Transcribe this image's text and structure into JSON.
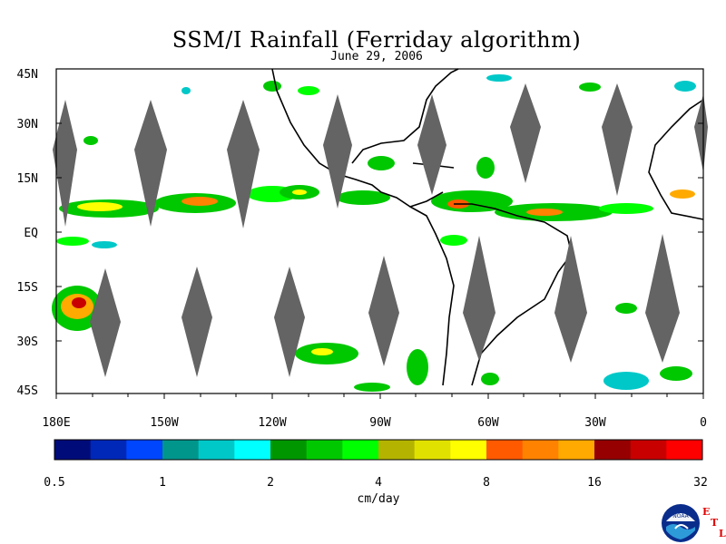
{
  "title": "SSM/I Rainfall (Ferriday algorithm)",
  "date": "June 29, 2006",
  "map": {
    "lat_labels": [
      "45N",
      "30N",
      "15N",
      "EQ",
      "15S",
      "30S",
      "45S"
    ],
    "lon_labels": [
      "180E",
      "150W",
      "120W",
      "90W",
      "60W",
      "30W",
      "0"
    ]
  },
  "colorbar": {
    "colors": [
      "#000b7a",
      "#0028b8",
      "#0046ff",
      "#00968c",
      "#00c8c8",
      "#00ffff",
      "#009600",
      "#00c800",
      "#00ff00",
      "#b4b400",
      "#e1e100",
      "#ffff00",
      "#ff5a00",
      "#ff8200",
      "#ffaa00",
      "#960000",
      "#c80000",
      "#ff0000"
    ],
    "tick_labels": [
      "0.5",
      "1",
      "2",
      "4",
      "8",
      "16",
      "32"
    ],
    "unit": "cm/day"
  },
  "logo": {
    "text": "NOAA",
    "letters": [
      "E",
      "T",
      "L"
    ]
  }
}
